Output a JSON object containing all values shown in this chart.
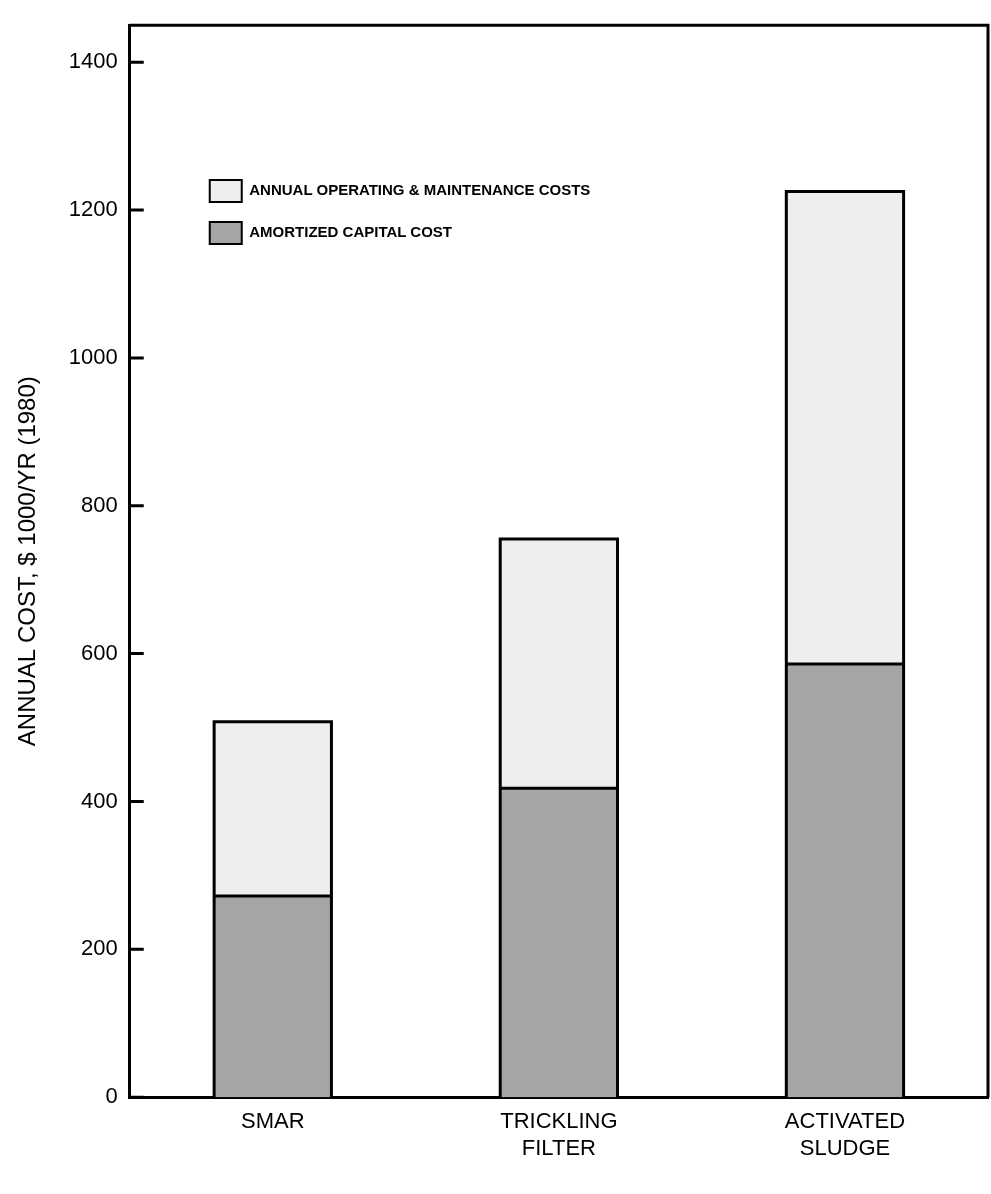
{
  "chart_data": {
    "type": "bar",
    "stacked": true,
    "categories": [
      "SMAR",
      "TRICKLING FILTER",
      "ACTIVATED SLUDGE"
    ],
    "series": [
      {
        "name": "AMORTIZED CAPITAL COST",
        "color": "#a6a6a6",
        "values": [
          272,
          418,
          586
        ]
      },
      {
        "name": "ANNUAL OPERATING & MAINTENANCE COSTS",
        "color": "#eeeeee",
        "values": [
          236,
          337,
          639
        ]
      }
    ],
    "ylabel": "ANNUAL COST, $ 1000/YR (1980)",
    "ylim": [
      0,
      1450
    ],
    "yticks": [
      0,
      200,
      400,
      600,
      800,
      1000,
      1200,
      1400
    ],
    "grid": false,
    "legend": "top left"
  }
}
